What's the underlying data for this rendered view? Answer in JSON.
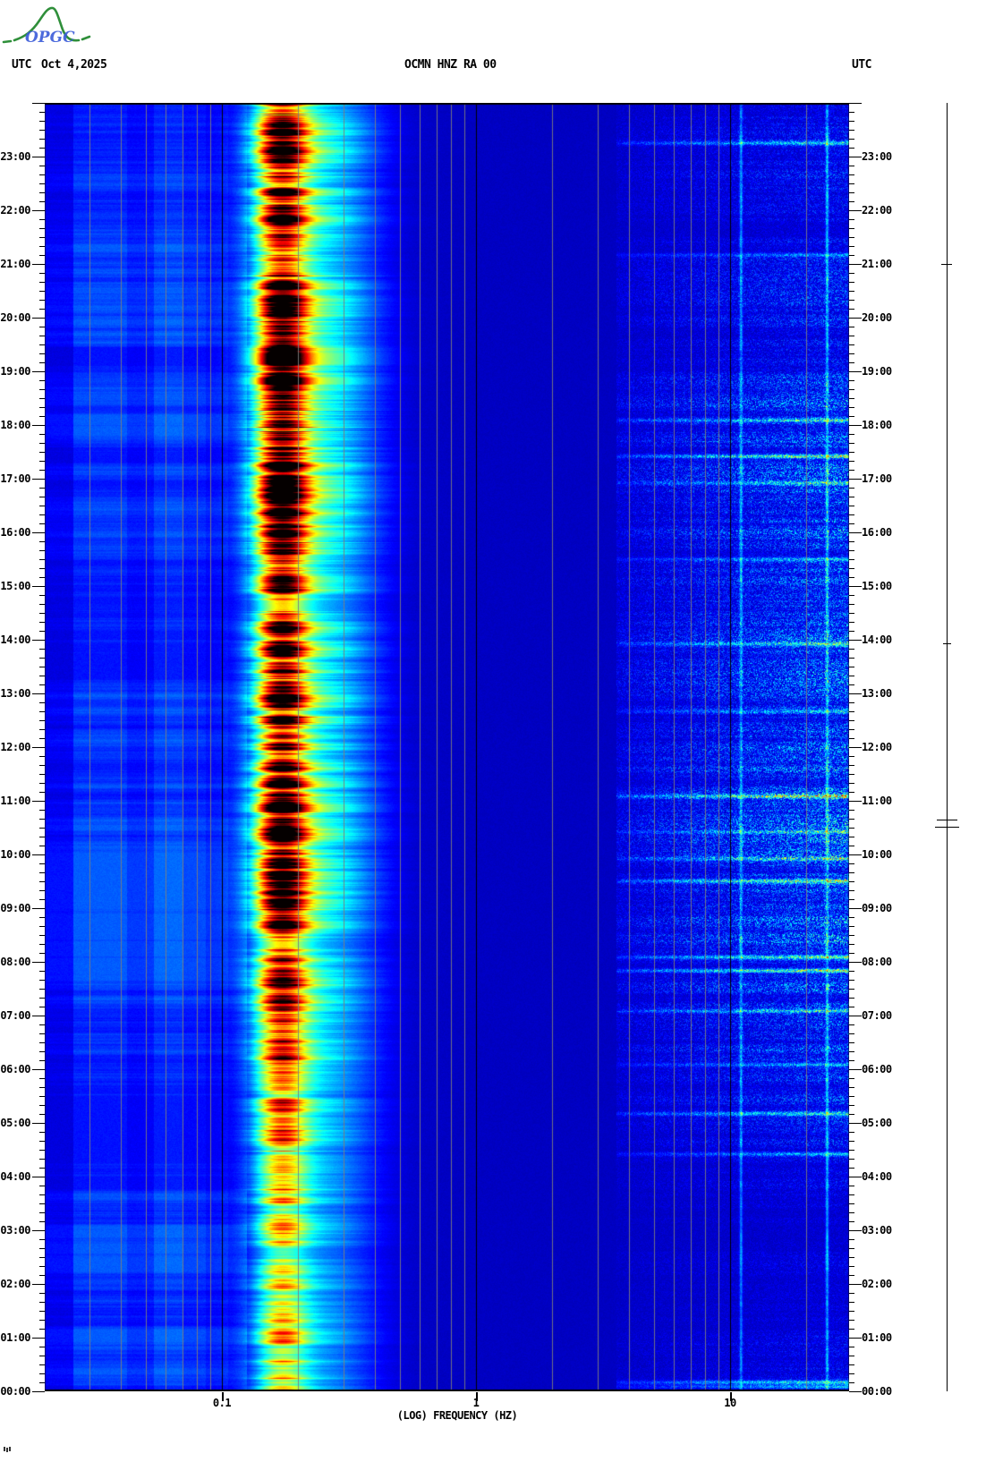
{
  "header": {
    "utc_left": "UTC",
    "date": "Oct 4,2025",
    "title": "OCMN HNZ RA 00",
    "utc_right": "UTC"
  },
  "logo": {
    "text": "OPGC",
    "curve_color": "#2f8f3a",
    "text_color": "#3a5bd9"
  },
  "axes": {
    "freq_axis_title": "(LOG) FREQUENCY (HZ)",
    "freq_tick_labels": [
      "0.1",
      "1",
      "10"
    ],
    "hour_labels": [
      "00:00",
      "01:00",
      "02:00",
      "03:00",
      "04:00",
      "05:00",
      "06:00",
      "07:00",
      "08:00",
      "09:00",
      "10:00",
      "11:00",
      "12:00",
      "13:00",
      "14:00",
      "15:00",
      "16:00",
      "17:00",
      "18:00",
      "19:00",
      "20:00",
      "21:00",
      "22:00",
      "23:00"
    ]
  },
  "chart_data": {
    "type": "heatmap",
    "title": "OCMN HNZ RA 00",
    "xlabel": "(LOG) FREQUENCY (HZ)",
    "x_scale": "log",
    "x_range_hz": [
      0.02,
      29.5
    ],
    "x_major_ticks_hz": [
      0.1,
      1,
      10
    ],
    "y_axis": "UTC time of day, 00:00 at bottom to 24:00 at top, hourly labels, 10-minute minor ticks",
    "date": "Oct 4,2025",
    "colormap": "jet",
    "background_level": 0.055,
    "low_freq_bins": [
      [
        0.02,
        0.026,
        0.095
      ],
      [
        0.026,
        0.042,
        0.15
      ],
      [
        0.042,
        0.054,
        0.125
      ],
      [
        0.054,
        0.07,
        0.16
      ],
      [
        0.07,
        0.086,
        0.135
      ],
      [
        0.086,
        0.105,
        0.115
      ],
      [
        0.105,
        0.125,
        0.095
      ]
    ],
    "microseism_band": {
      "center_hz": 0.17,
      "sigma_log10": 0.1,
      "pedestal_center_hz": 0.24,
      "pedestal_sigma_log10": 0.22
    },
    "hourly_microseism_intensity": [
      0.5,
      0.48,
      0.45,
      0.47,
      0.55,
      0.6,
      0.68,
      0.78,
      0.85,
      0.92,
      0.9,
      0.95,
      0.92,
      0.85,
      0.84,
      0.9,
      0.95,
      1.0,
      0.92,
      0.88,
      0.86,
      0.82,
      0.82,
      0.88
    ],
    "hourly_high_freq_noise": [
      0.3,
      0.22,
      0.2,
      0.22,
      0.35,
      0.55,
      0.65,
      0.75,
      0.85,
      0.85,
      0.8,
      0.85,
      0.8,
      0.75,
      0.72,
      0.72,
      0.78,
      0.85,
      0.7,
      0.5,
      0.42,
      0.38,
      0.38,
      0.45
    ],
    "spectral_lines_hz": [
      11,
      24
    ],
    "events_utc": [
      [
        "00:05",
        0.55
      ],
      [
        "00:10",
        0.75
      ],
      [
        "04:25",
        0.5
      ],
      [
        "05:10",
        0.7
      ],
      [
        "06:05",
        0.5
      ],
      [
        "07:05",
        0.6
      ],
      [
        "07:50",
        0.85
      ],
      [
        "08:05",
        0.9
      ],
      [
        "09:30",
        0.85
      ],
      [
        "09:55",
        0.6
      ],
      [
        "10:25",
        0.6
      ],
      [
        "11:05",
        0.95
      ],
      [
        "12:40",
        0.5
      ],
      [
        "13:55",
        0.7
      ],
      [
        "15:30",
        0.5
      ],
      [
        "16:55",
        0.6
      ],
      [
        "17:25",
        0.8
      ],
      [
        "18:05",
        0.6
      ],
      [
        "21:10",
        0.45
      ],
      [
        "23:15",
        0.6
      ]
    ],
    "scale_bar_marks_y": [
      295,
      719,
      916,
      924
    ]
  }
}
